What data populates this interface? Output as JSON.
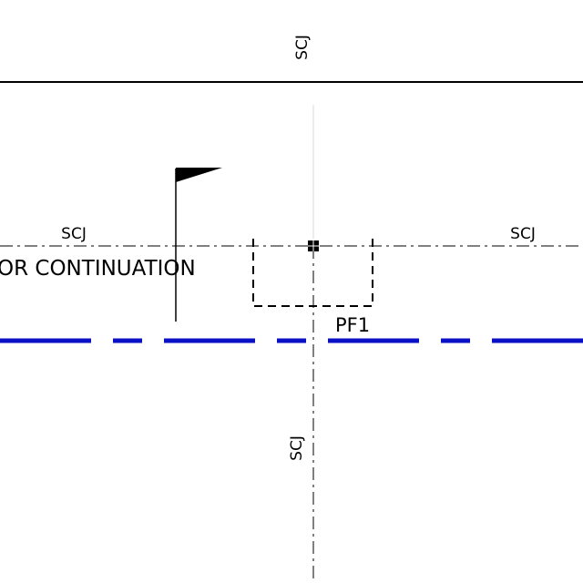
{
  "labels": {
    "scj_top_vertical": "SCJ",
    "scj_left_horizontal": "SCJ",
    "scj_right_horizontal": "SCJ",
    "scj_bottom_vertical": "SCJ",
    "continuation_note": "OR CONTINUATION",
    "footing_tag": "PF1"
  },
  "colors": {
    "background": "#ffffff",
    "linework": "#000000",
    "grid_line": "#0a10c4",
    "faint_centerline": "#d8d8d8"
  },
  "icons": {
    "flag": "flag-icon",
    "column_marker": "column-marker-icon"
  }
}
